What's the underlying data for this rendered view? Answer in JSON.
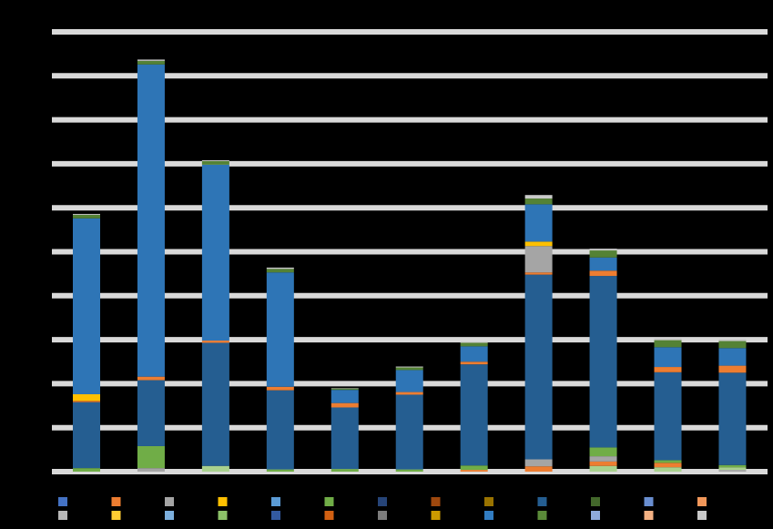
{
  "chart_data": {
    "type": "bar",
    "stacked": true,
    "title": "",
    "xlabel": "",
    "ylabel": "",
    "grid": true,
    "legend_position": "bottom",
    "background": "#000000",
    "gridline_color": "#d9d9d9",
    "ylim": [
      0,
      100
    ],
    "categories": [
      "",
      "",
      "",
      "",
      "",
      "",
      "",
      "",
      "",
      "",
      ""
    ],
    "series": [
      {
        "color": "#a5a5a5",
        "values": [
          0.0,
          0.8,
          0.0,
          0.0,
          0.0,
          0.0,
          0.0,
          0.0,
          0.0,
          0.0,
          0.4
        ]
      },
      {
        "color": "#a9d18e",
        "values": [
          0.0,
          0.0,
          1.3,
          0.0,
          0.0,
          0.0,
          0.0,
          0.0,
          1.3,
          1.0,
          0.6
        ]
      },
      {
        "color": "#ed7d31",
        "values": [
          0.0,
          0.0,
          0.0,
          0.0,
          0.0,
          0.0,
          0.4,
          1.2,
          1.0,
          1.0,
          0.0
        ]
      },
      {
        "color": "#a5a5a5",
        "values": [
          0.0,
          0.0,
          0.0,
          0.0,
          0.0,
          0.0,
          0.0,
          1.6,
          1.2,
          0.0,
          0.0
        ]
      },
      {
        "color": "#70ad47",
        "values": [
          0.8,
          5.0,
          0.0,
          0.5,
          0.6,
          0.5,
          1.0,
          0.0,
          2.0,
          0.6,
          0.5
        ]
      },
      {
        "color": "#255e91",
        "values": [
          15.0,
          15.0,
          28.0,
          18.0,
          14.0,
          17.0,
          23.0,
          42.0,
          39.0,
          20.0,
          21.0
        ]
      },
      {
        "color": "#f4b183",
        "values": [
          0.0,
          0.0,
          0.0,
          0.0,
          0.0,
          0.0,
          0.0,
          0.0,
          0.0,
          0.0,
          0.0
        ]
      },
      {
        "color": "#ed7d31",
        "values": [
          0.3,
          0.8,
          0.5,
          0.8,
          1.0,
          0.6,
          0.6,
          0.5,
          1.2,
          1.2,
          1.6
        ]
      },
      {
        "color": "#ffc000",
        "values": [
          1.5,
          0.0,
          0.0,
          0.0,
          0.0,
          0.0,
          0.0,
          0.0,
          0.0,
          0.0,
          0.0
        ]
      },
      {
        "color": "#a5a5a5",
        "values": [
          0.0,
          0.0,
          0.0,
          0.0,
          0.0,
          0.0,
          0.0,
          6.0,
          0.0,
          0.0,
          0.0
        ]
      },
      {
        "color": "#ffc000",
        "values": [
          0.0,
          0.0,
          0.0,
          0.0,
          0.0,
          0.0,
          0.0,
          1.0,
          0.0,
          0.0,
          0.0
        ]
      },
      {
        "color": "#2e75b6",
        "values": [
          40.0,
          71.0,
          40.0,
          26.0,
          3.0,
          5.0,
          3.5,
          8.5,
          3.0,
          4.5,
          4.0
        ]
      },
      {
        "color": "#548235",
        "values": [
          0.8,
          0.8,
          0.8,
          0.8,
          0.3,
          0.6,
          0.8,
          1.3,
          1.6,
          1.6,
          1.6
        ]
      },
      {
        "color": "#c9c9c9",
        "values": [
          0.2,
          0.3,
          0.2,
          0.3,
          0.1,
          0.2,
          0.2,
          0.8,
          0.4,
          0.4,
          0.4
        ]
      }
    ]
  },
  "legend": {
    "rows": [
      [
        {
          "color": "#4472c4"
        },
        {
          "color": "#ed7d31"
        },
        {
          "color": "#a5a5a5"
        },
        {
          "color": "#ffc000"
        },
        {
          "color": "#5b9bd5"
        },
        {
          "color": "#70ad47"
        },
        {
          "color": "#264478"
        },
        {
          "color": "#9e480e"
        },
        {
          "color": "#997300"
        },
        {
          "color": "#255e91"
        },
        {
          "color": "#43682b"
        },
        {
          "color": "#698ed0"
        },
        {
          "color": "#f1975a"
        }
      ],
      [
        {
          "color": "#b7b7b7"
        },
        {
          "color": "#ffcd33"
        },
        {
          "color": "#7cafdd"
        },
        {
          "color": "#8cc168"
        },
        {
          "color": "#335aa1"
        },
        {
          "color": "#d26012"
        },
        {
          "color": "#7c7c7c"
        },
        {
          "color": "#cc9a00"
        },
        {
          "color": "#327dc2"
        },
        {
          "color": "#5a8a39"
        },
        {
          "color": "#8faadc"
        },
        {
          "color": "#f4b183"
        },
        {
          "color": "#c9c9c9"
        }
      ]
    ]
  }
}
